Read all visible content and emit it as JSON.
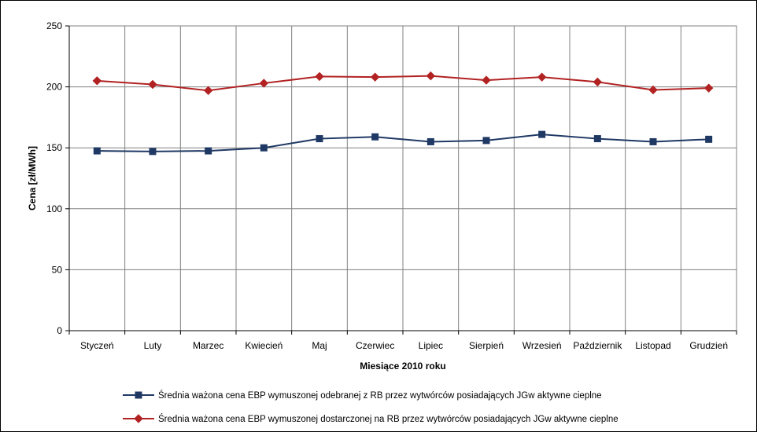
{
  "chart_data": {
    "type": "line",
    "xlabel": "Miesiące 2010 roku",
    "ylabel": "Cena [zł/MWh]",
    "ylim": [
      0,
      250
    ],
    "yticks": [
      0,
      50,
      100,
      150,
      200,
      250
    ],
    "grid": true,
    "legend_position": "bottom",
    "categories": [
      "Styczeń",
      "Luty",
      "Marzec",
      "Kwiecień",
      "Maj",
      "Czerwiec",
      "Lipiec",
      "Sierpień",
      "Wrzesień",
      "Październik",
      "Listopad",
      "Grudzień"
    ],
    "series": [
      {
        "name": "Średnia ważona cena EBP wymuszonej odebranej z RB przez wytwórców posiadających JGw aktywne cieplne",
        "color": "#1f3864",
        "marker": "square",
        "values": [
          147.5,
          147,
          147.5,
          150,
          157.5,
          159,
          155,
          156,
          161,
          157.5,
          155,
          157
        ]
      },
      {
        "name": "Średnia ważona cena EBP wymuszonej dostarczonej na RB przez wytwórców posiadających JGw aktywne cieplne",
        "color": "#b22222",
        "marker": "diamond",
        "values": [
          205,
          202,
          197,
          203,
          208.5,
          208,
          209,
          205.5,
          208,
          204,
          197.5,
          199
        ]
      }
    ]
  }
}
